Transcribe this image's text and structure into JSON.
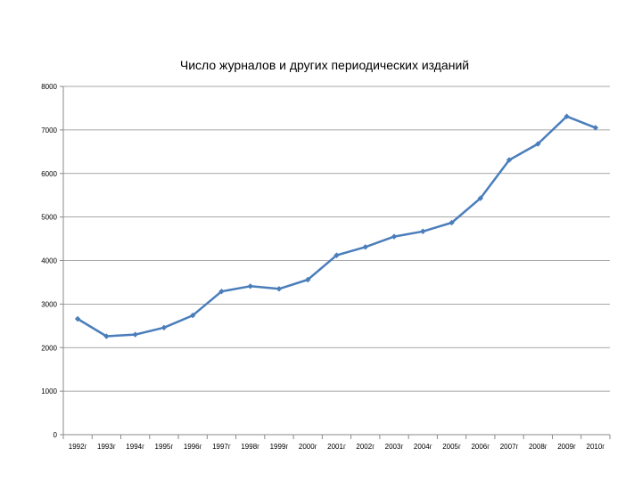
{
  "chart_data": {
    "type": "line",
    "title": "Число журналов и других периодических изданий",
    "xlabel": "",
    "ylabel": "",
    "ylim": [
      0,
      8000
    ],
    "yticks": [
      0,
      1000,
      2000,
      3000,
      4000,
      5000,
      6000,
      7000,
      8000
    ],
    "grid": true,
    "legend": "none",
    "categories": [
      "1992г",
      "1993г",
      "1994г",
      "1995г",
      "1996г",
      "1997г",
      "1998г",
      "1999г",
      "2000г",
      "2001г",
      "2002г",
      "2003г",
      "2004г",
      "2005г",
      "2006г",
      "2007г",
      "2008г",
      "2009г",
      "2010г"
    ],
    "series": [
      {
        "name": "Число журналов и других периодических изданий",
        "color": "#4a7ebb",
        "values": [
          2660,
          2260,
          2300,
          2460,
          2740,
          3290,
          3410,
          3350,
          3560,
          4120,
          4310,
          4550,
          4670,
          4870,
          5430,
          6310,
          6680,
          7310,
          7050
        ]
      }
    ]
  }
}
